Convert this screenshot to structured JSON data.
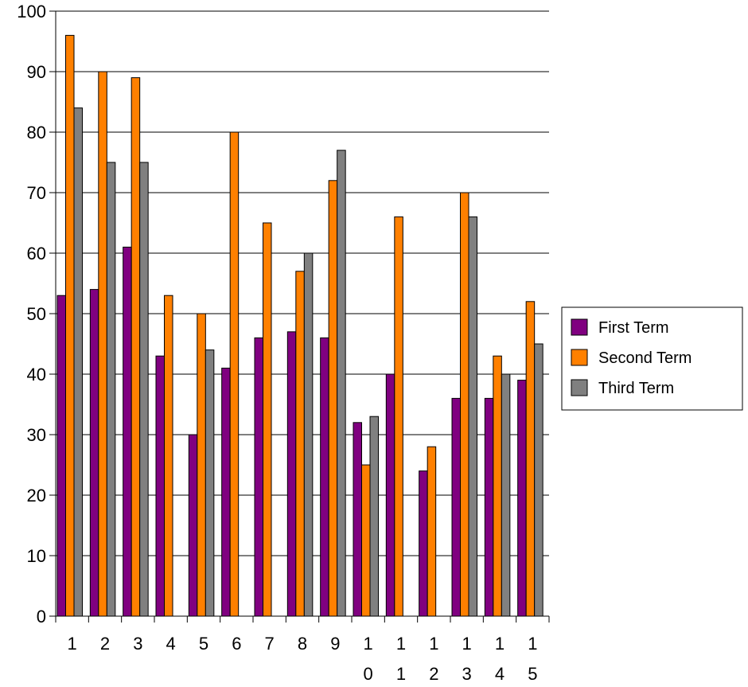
{
  "chart_data": {
    "type": "bar",
    "title": "",
    "xlabel": "",
    "ylabel": "",
    "ylim": [
      0,
      100
    ],
    "yticks": [
      0,
      10,
      20,
      30,
      40,
      50,
      60,
      70,
      80,
      90,
      100
    ],
    "grid": true,
    "legend": "right",
    "categories": [
      "1",
      "2",
      "3",
      "4",
      "5",
      "6",
      "7",
      "8",
      "9",
      "10",
      "11",
      "12",
      "13",
      "14",
      "15"
    ],
    "category_lines": [
      [
        "1"
      ],
      [
        "2"
      ],
      [
        "3"
      ],
      [
        "4"
      ],
      [
        "5"
      ],
      [
        "6"
      ],
      [
        "7"
      ],
      [
        "8"
      ],
      [
        "9"
      ],
      [
        "1",
        "0"
      ],
      [
        "1",
        "1"
      ],
      [
        "1",
        "2"
      ],
      [
        "1",
        "3"
      ],
      [
        "1",
        "4"
      ],
      [
        "1",
        "5"
      ]
    ],
    "series": [
      {
        "name": "First Term",
        "color": "#800080",
        "values": [
          53,
          54,
          61,
          43,
          30,
          41,
          46,
          47,
          46,
          32,
          40,
          24,
          36,
          36,
          39
        ]
      },
      {
        "name": "Second Term",
        "color": "#ff8000",
        "values": [
          96,
          90,
          89,
          53,
          50,
          80,
          65,
          57,
          72,
          25,
          66,
          28,
          70,
          43,
          52
        ]
      },
      {
        "name": "Third Term",
        "color": "#808080",
        "values": [
          84,
          75,
          75,
          0,
          44,
          0,
          0,
          60,
          77,
          33,
          0,
          0,
          66,
          40,
          45
        ]
      }
    ]
  }
}
